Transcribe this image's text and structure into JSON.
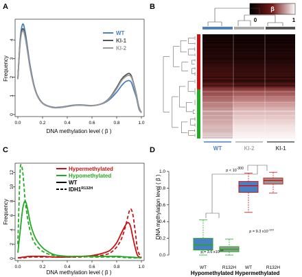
{
  "panels": [
    "A",
    "B",
    "C",
    "D"
  ],
  "chart_data": [
    {
      "id": "A",
      "type": "line",
      "xlabel": "DNA methylation level ( β )",
      "ylabel": "Frequency",
      "xlim": [
        0,
        1
      ],
      "ylim": [
        0,
        5
      ],
      "xticks": [
        "0.0",
        "0.2",
        "0.4",
        "0.6",
        "0.8",
        "1.0"
      ],
      "yticks": [
        "0",
        "1",
        "2",
        "3",
        "4"
      ],
      "legend_position": "top-right",
      "series": [
        {
          "name": "WT",
          "color": "#4a7fc1",
          "x": [
            0,
            0.02,
            0.04,
            0.06,
            0.08,
            0.1,
            0.13,
            0.16,
            0.2,
            0.25,
            0.3,
            0.35,
            0.4,
            0.45,
            0.5,
            0.55,
            0.6,
            0.65,
            0.7,
            0.75,
            0.8,
            0.84,
            0.87,
            0.9,
            0.92,
            0.94,
            0.96,
            0.98,
            1.0
          ],
          "y": [
            1.9,
            4.1,
            4.85,
            4.4,
            3.5,
            2.6,
            1.6,
            1.0,
            0.62,
            0.45,
            0.38,
            0.4,
            0.45,
            0.5,
            0.52,
            0.5,
            0.48,
            0.52,
            0.62,
            0.85,
            1.2,
            1.55,
            1.75,
            1.82,
            1.7,
            1.3,
            0.9,
            0.3,
            0.1
          ]
        },
        {
          "name": "KI-1",
          "color": "#555555",
          "x": [
            0,
            0.02,
            0.04,
            0.06,
            0.08,
            0.1,
            0.13,
            0.16,
            0.2,
            0.25,
            0.3,
            0.35,
            0.4,
            0.45,
            0.5,
            0.55,
            0.6,
            0.65,
            0.7,
            0.75,
            0.8,
            0.84,
            0.87,
            0.9,
            0.92,
            0.94,
            0.96,
            0.98,
            1.0
          ],
          "y": [
            1.9,
            4.0,
            4.6,
            4.2,
            3.35,
            2.5,
            1.55,
            0.98,
            0.6,
            0.43,
            0.36,
            0.38,
            0.43,
            0.48,
            0.5,
            0.48,
            0.47,
            0.52,
            0.65,
            0.95,
            1.45,
            1.9,
            2.1,
            2.2,
            2.05,
            1.6,
            1.05,
            0.4,
            0.1
          ]
        },
        {
          "name": "KI-2",
          "color": "#999999",
          "x": [
            0,
            0.02,
            0.04,
            0.06,
            0.08,
            0.1,
            0.13,
            0.16,
            0.2,
            0.25,
            0.3,
            0.35,
            0.4,
            0.45,
            0.5,
            0.55,
            0.6,
            0.65,
            0.7,
            0.75,
            0.8,
            0.84,
            0.87,
            0.9,
            0.92,
            0.94,
            0.96,
            0.98,
            1.0
          ],
          "y": [
            1.9,
            3.9,
            4.5,
            4.1,
            3.3,
            2.45,
            1.52,
            0.96,
            0.6,
            0.43,
            0.36,
            0.38,
            0.43,
            0.48,
            0.5,
            0.48,
            0.47,
            0.52,
            0.64,
            0.92,
            1.38,
            1.82,
            2.02,
            2.1,
            1.98,
            1.55,
            1.0,
            0.38,
            0.1
          ]
        }
      ]
    },
    {
      "id": "B",
      "type": "heatmap",
      "color_key_label": "β",
      "color_key_ticks": [
        "0",
        "1"
      ],
      "column_groups": [
        {
          "name": "WT",
          "color": "#4a7fc1"
        },
        {
          "name": "KI-2",
          "color": "#aaaaaa"
        },
        {
          "name": "KI-1",
          "color": "#555555"
        }
      ],
      "row_groups": [
        {
          "name": "Hypermethylated",
          "color": "#cc1111",
          "fraction": 0.53
        },
        {
          "name": "Hypomethylated",
          "color": "#22aa22",
          "fraction": 0.47
        }
      ]
    },
    {
      "id": "C",
      "type": "line",
      "xlabel": "DNA methylation level ( β )",
      "ylabel": "Frequency",
      "xlim": [
        0,
        1
      ],
      "ylim": [
        0,
        13
      ],
      "xticks": [
        "0.0",
        "0.2",
        "0.4",
        "0.6",
        "0.8",
        "1.0"
      ],
      "yticks": [
        "0",
        "2",
        "4",
        "6",
        "8",
        "10",
        "12"
      ],
      "legend_position": "top-right",
      "legend": {
        "hyper": "Hypermethylated",
        "hypo": "Hypomethylated",
        "wt": "WT",
        "mut": "IDH1",
        "mut_sup": "R132H"
      },
      "series": [
        {
          "name": "Hypermethylated",
          "color": "#cc1111",
          "dash": false,
          "x": [
            0,
            0.05,
            0.1,
            0.2,
            0.3,
            0.4,
            0.5,
            0.6,
            0.7,
            0.75,
            0.8,
            0.84,
            0.87,
            0.89,
            0.91,
            0.93,
            0.95,
            0.97,
            1.0
          ],
          "y": [
            0.1,
            0.2,
            0.3,
            0.3,
            0.2,
            0.2,
            0.3,
            0.4,
            0.8,
            1.2,
            2.2,
            3.6,
            4.6,
            5.0,
            4.6,
            3.0,
            1.5,
            0.4,
            0.1
          ]
        },
        {
          "name": "Hypermethylated",
          "color": "#cc1111",
          "dash": true,
          "x": [
            0,
            0.05,
            0.1,
            0.2,
            0.3,
            0.4,
            0.5,
            0.6,
            0.7,
            0.75,
            0.8,
            0.84,
            0.87,
            0.89,
            0.91,
            0.93,
            0.95,
            0.97,
            1.0
          ],
          "y": [
            0.1,
            0.1,
            0.2,
            0.2,
            0.2,
            0.2,
            0.2,
            0.3,
            0.5,
            0.8,
            1.6,
            2.8,
            4.4,
            5.8,
            6.9,
            6.2,
            3.8,
            1.2,
            0.1
          ]
        },
        {
          "name": "Hypomethylated",
          "color": "#22aa22",
          "dash": false,
          "x": [
            0,
            0.02,
            0.04,
            0.06,
            0.08,
            0.1,
            0.12,
            0.15,
            0.2,
            0.25,
            0.3,
            0.4,
            0.5,
            0.6,
            0.7,
            0.8,
            0.9,
            1.0
          ],
          "y": [
            0.8,
            4.0,
            7.0,
            8.0,
            6.8,
            5.0,
            3.8,
            2.6,
            1.5,
            0.9,
            0.5,
            0.3,
            0.3,
            0.3,
            0.3,
            0.3,
            0.2,
            0.1
          ]
        },
        {
          "name": "Hypomethylated",
          "color": "#22aa22",
          "dash": true,
          "x": [
            0,
            0.01,
            0.02,
            0.03,
            0.04,
            0.05,
            0.06,
            0.08,
            0.1,
            0.12,
            0.15,
            0.2,
            0.25,
            0.3,
            0.4,
            0.5,
            0.6,
            0.7,
            0.8,
            0.9,
            1.0
          ],
          "y": [
            2.0,
            8.0,
            12.6,
            12.9,
            12.0,
            10.0,
            8.0,
            5.5,
            3.8,
            2.7,
            1.8,
            1.0,
            0.6,
            0.4,
            0.3,
            0.3,
            0.2,
            0.2,
            0.2,
            0.1,
            0.1
          ]
        }
      ]
    },
    {
      "id": "D",
      "type": "box",
      "ylabel": "DNA methylation level ( β )",
      "ylim": [
        0,
        1
      ],
      "yticks": [
        "0.0",
        "0.2",
        "0.4",
        "0.6",
        "0.8",
        "1.0"
      ],
      "categories": [
        "WT",
        "R132H",
        "WT",
        "R132H"
      ],
      "groups": [
        {
          "label": "Hypomethylated",
          "color": "#22aa22"
        },
        {
          "label": "Hypermethylated",
          "color": "#cc1111"
        }
      ],
      "boxes": [
        {
          "q1": 0.06,
          "median": 0.12,
          "q3": 0.2,
          "lo": 0.0,
          "hi": 0.42,
          "fill": "#4a7fc1",
          "border": "#22aa22"
        },
        {
          "q1": 0.04,
          "median": 0.07,
          "q3": 0.1,
          "lo": 0.0,
          "hi": 0.19,
          "fill": "#999999",
          "border": "#22aa22"
        },
        {
          "q1": 0.75,
          "median": 0.83,
          "q3": 0.88,
          "lo": 0.51,
          "hi": 0.98,
          "fill": "#4a7fc1",
          "border": "#cc1111"
        },
        {
          "q1": 0.85,
          "median": 0.89,
          "q3": 0.92,
          "lo": 0.74,
          "hi": 0.99,
          "fill": "#999999",
          "border": "#cc1111"
        }
      ],
      "annotations": {
        "top": {
          "base": "p < 10",
          "exp": "-300"
        },
        "hypo": {
          "base": "p = 3.6 x10",
          "exp": "-94"
        },
        "hyper": {
          "base": "p = 9.3 x10",
          "exp": "-129"
        }
      }
    }
  ]
}
